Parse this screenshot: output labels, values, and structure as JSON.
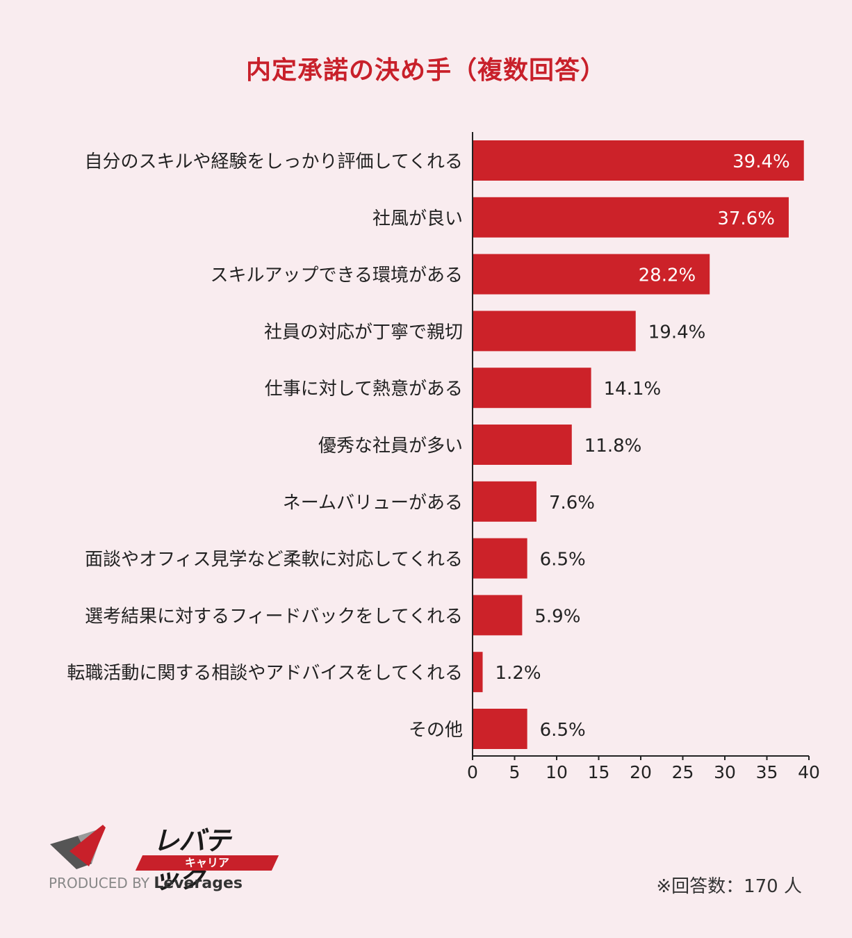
{
  "title": "内定承諾の決め手（複数回答）",
  "colors": {
    "bar": "#cc2229",
    "axis": "#222222",
    "background": "#f9ecef",
    "accent": "#c8202a"
  },
  "chart_data": {
    "type": "bar",
    "orientation": "horizontal",
    "title": "内定承諾の決め手（複数回答）",
    "categories": [
      "自分のスキルや経験をしっかり評価してくれる",
      "社風が良い",
      "スキルアップできる環境がある",
      "社員の対応が丁寧で親切",
      "仕事に対して熱意がある",
      "優秀な社員が多い",
      "ネームバリューがある",
      "面談やオフィス見学など柔軟に対応してくれる",
      "選考結果に対するフィードバックをしてくれる",
      "転職活動に関する相談やアドバイスをしてくれる",
      "その他"
    ],
    "values": [
      39.4,
      37.6,
      28.2,
      19.4,
      14.1,
      11.8,
      7.6,
      6.5,
      5.9,
      1.2,
      6.5
    ],
    "labels": [
      "39.4%",
      "37.6%",
      "28.2%",
      "19.4%",
      "14.1%",
      "11.8%",
      "7.6%",
      "6.5%",
      "5.9%",
      "1.2%",
      "6.5%"
    ],
    "xlim": [
      0,
      40
    ],
    "xticks": [
      "0",
      "5",
      "10",
      "15",
      "20",
      "25",
      "30",
      "35",
      "40"
    ],
    "xlabel": "",
    "ylabel": "",
    "grid": false
  },
  "logo": {
    "name": "レバテック",
    "sub": "キャリア",
    "produced_by": "PRODUCED BY",
    "company": "Leverages"
  },
  "note": "※回答数：170 人"
}
